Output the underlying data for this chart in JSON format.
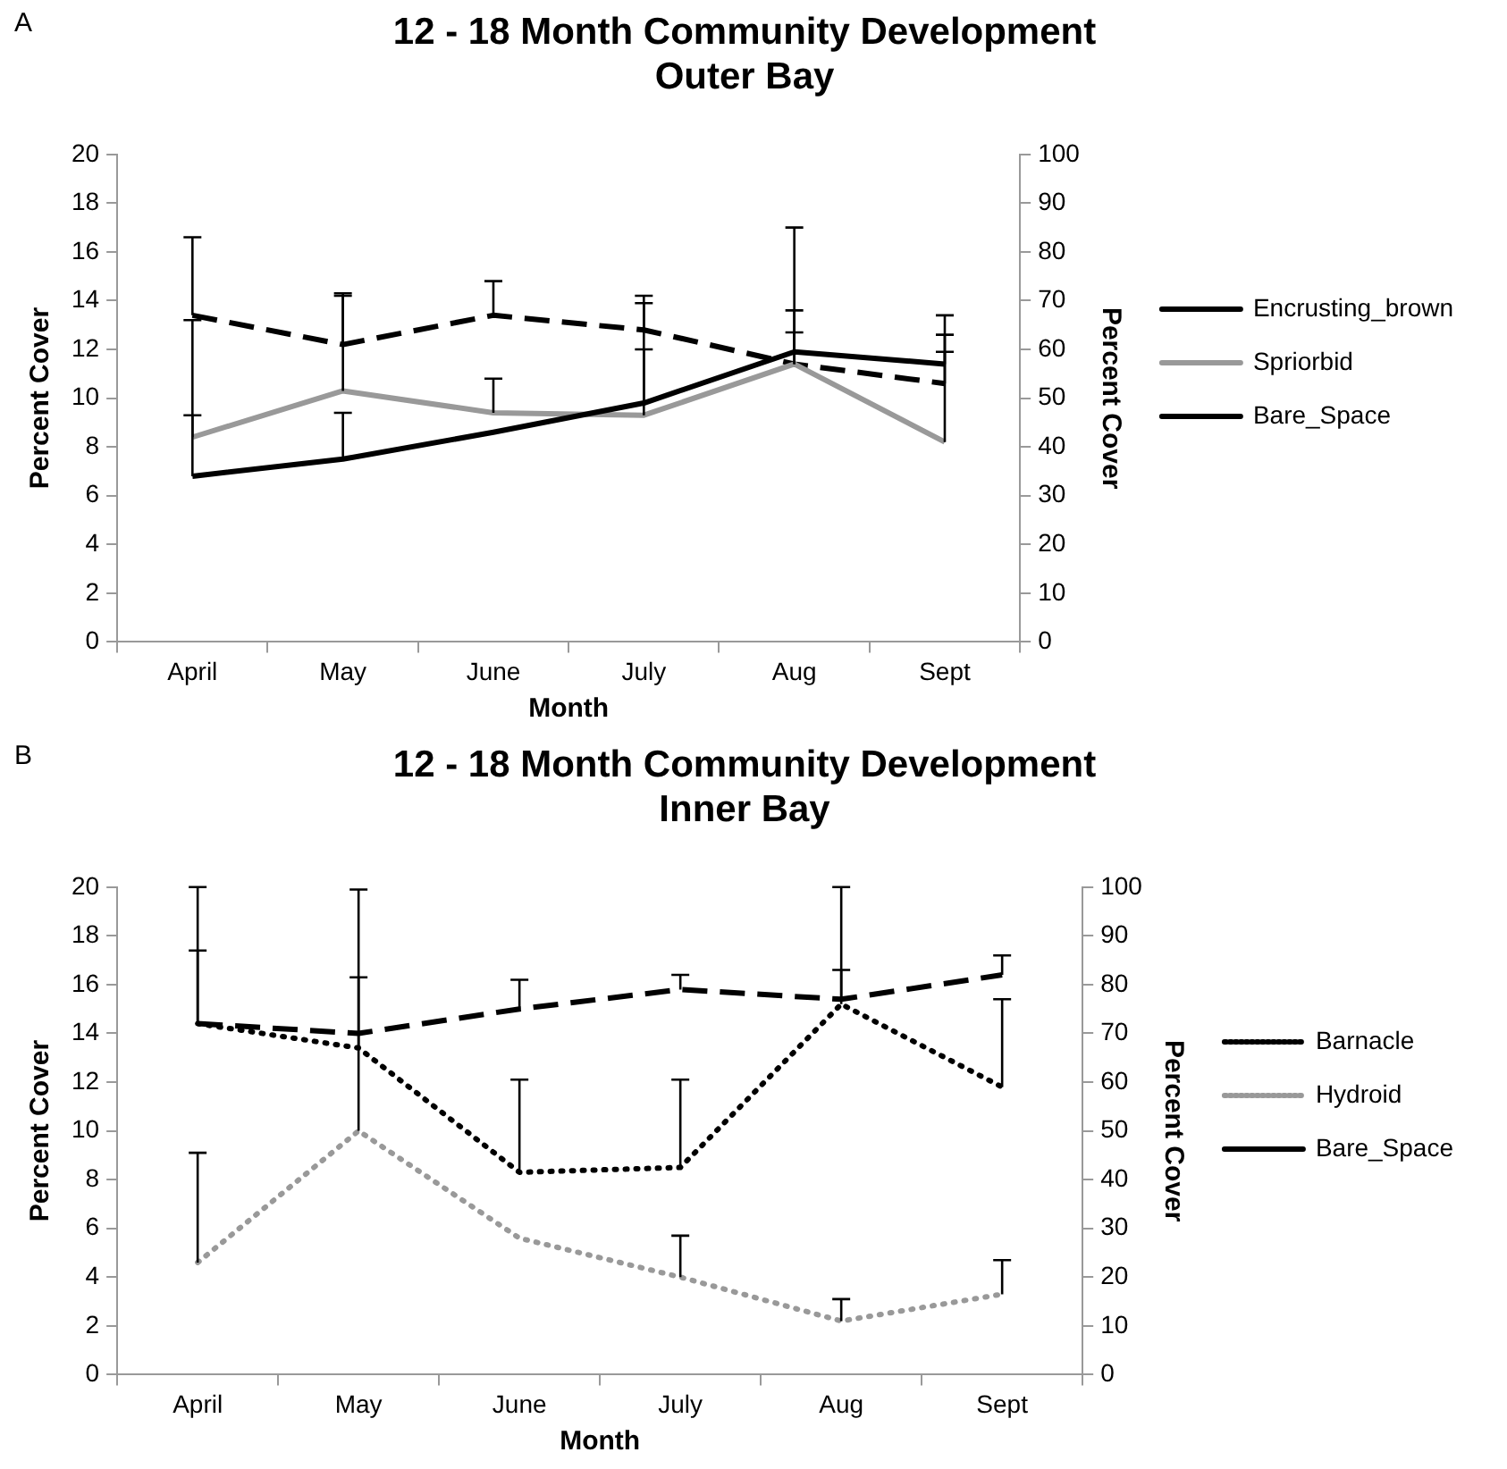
{
  "chart_data": [
    {
      "type": "line",
      "title": "12 - 18 Month Community Development\nOuter Bay",
      "xlabel": "Month",
      "ylabel": "Percent Cover",
      "y2label": "Percent Cover",
      "annotations": [
        "A"
      ],
      "categories": [
        "April",
        "May",
        "June",
        "July",
        "Aug",
        "Sept"
      ],
      "series": [
        {
          "name": "Encrusting_brown",
          "color": "#000000",
          "line_style": "solid",
          "values": [
            6.8,
            7.5,
            8.6,
            9.8,
            11.9,
            11.4
          ],
          "errors": [
            [
              6.8,
              13.2
            ],
            [
              7.5,
              9.4
            ],
            null,
            [
              9.8,
              12.0
            ],
            [
              11.9,
              13.6
            ],
            [
              11.4,
              11.9
            ]
          ]
        },
        {
          "name": "Spriorbid",
          "color": "#999999",
          "line_style": "solid",
          "values": [
            8.4,
            10.3,
            9.4,
            9.3,
            11.4,
            8.2
          ],
          "errors": [
            [
              8.4,
              9.3
            ],
            [
              10.3,
              14.3
            ],
            [
              9.4,
              10.8
            ],
            [
              9.3,
              13.9
            ],
            [
              11.4,
              12.7
            ],
            [
              8.2,
              12.6
            ]
          ]
        },
        {
          "name": "Bare_Space",
          "color": "#000000",
          "line_style": "dashed",
          "axis": "y2",
          "values": [
            67,
            61,
            67,
            64,
            57,
            53
          ],
          "errors": [
            [
              67,
              83
            ],
            [
              61,
              71
            ],
            [
              67,
              74
            ],
            [
              64,
              71
            ],
            [
              57,
              85
            ],
            [
              53,
              67
            ]
          ]
        }
      ],
      "ylim": [
        0,
        20
      ],
      "yticks": [
        0,
        2,
        4,
        6,
        8,
        10,
        12,
        14,
        16,
        18,
        20
      ],
      "y2lim": [
        0,
        100
      ],
      "y2ticks": [
        0,
        10,
        20,
        30,
        40,
        50,
        60,
        70,
        80,
        90,
        100
      ],
      "grid": false,
      "legend": "right",
      "marker": "none"
    },
    {
      "type": "line",
      "title": "12 - 18 Month Community Development\nInner Bay",
      "xlabel": "Month",
      "ylabel": "Percent Cover",
      "y2label": "Percent Cover",
      "annotations": [
        "B"
      ],
      "categories": [
        "April",
        "May",
        "June",
        "July",
        "Aug",
        "Sept"
      ],
      "series": [
        {
          "name": "Barnacle",
          "color": "#000000",
          "line_style": "dotted",
          "values": [
            14.4,
            13.4,
            8.3,
            8.5,
            15.2,
            11.8
          ],
          "errors": [
            [
              14.4,
              20.0
            ],
            [
              13.4,
              19.9
            ],
            [
              8.3,
              12.1
            ],
            [
              8.5,
              12.1
            ],
            [
              15.2,
              20.0
            ],
            [
              11.8,
              15.4
            ]
          ]
        },
        {
          "name": "Hydroid",
          "color": "#999999",
          "line_style": "dotted",
          "values": [
            4.6,
            10.0,
            5.6,
            4.0,
            2.2,
            3.3
          ],
          "errors": [
            [
              4.6,
              9.1
            ],
            [
              10.0,
              16.3
            ],
            null,
            [
              4.0,
              5.7
            ],
            [
              2.2,
              3.1
            ],
            [
              3.3,
              4.7
            ]
          ]
        },
        {
          "name": "Bare_Space",
          "color": "#000000",
          "line_style": "dashed",
          "axis": "y2",
          "values": [
            72,
            70,
            75,
            79,
            77,
            82
          ],
          "errors": [
            [
              72,
              87
            ],
            null,
            [
              75,
              81
            ],
            [
              79,
              82
            ],
            [
              77,
              83
            ],
            [
              82,
              86
            ]
          ]
        }
      ],
      "ylim": [
        0,
        20
      ],
      "yticks": [
        0,
        2,
        4,
        6,
        8,
        10,
        12,
        14,
        16,
        18,
        20
      ],
      "y2lim": [
        0,
        100
      ],
      "y2ticks": [
        0,
        10,
        20,
        30,
        40,
        50,
        60,
        70,
        80,
        90,
        100
      ],
      "grid": false,
      "legend": "right",
      "marker": "none"
    }
  ]
}
